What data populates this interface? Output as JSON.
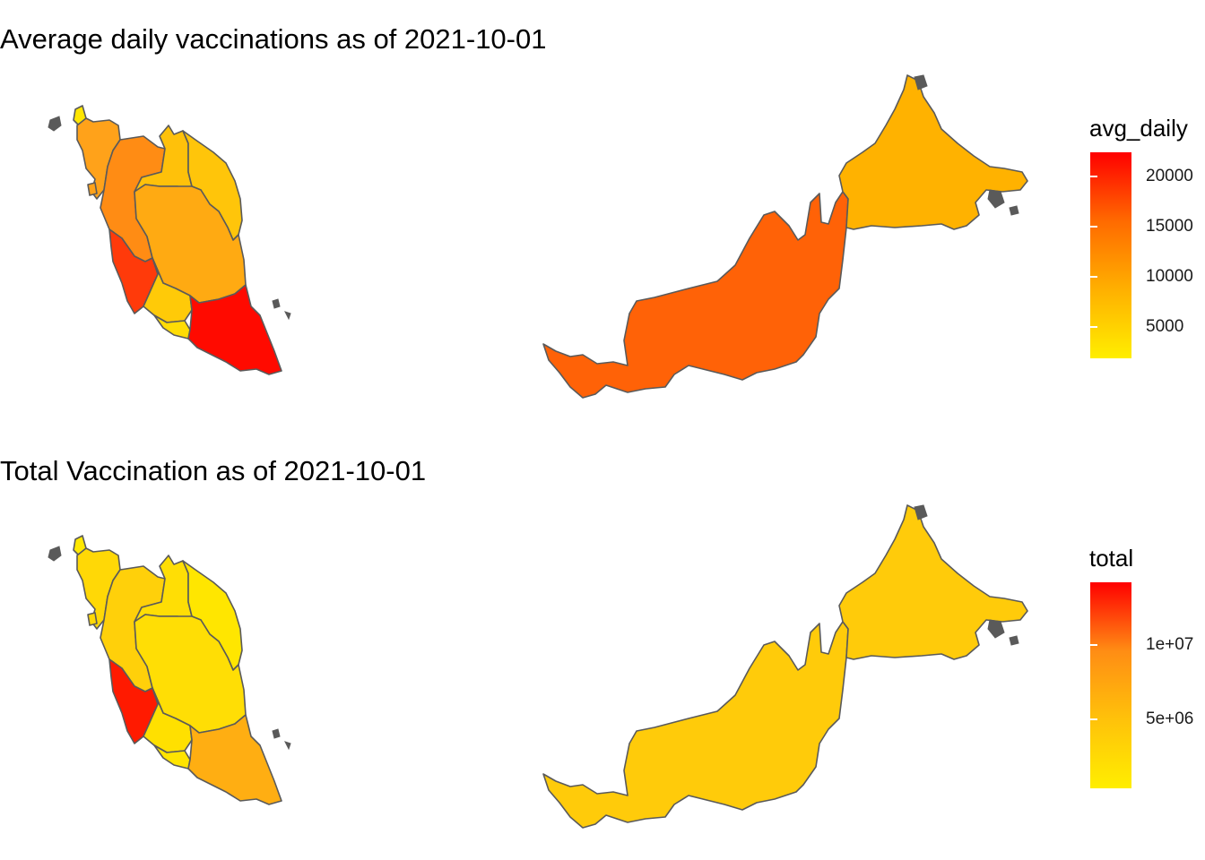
{
  "panels": [
    {
      "title": "Average daily vaccinations as of 2021-10-01",
      "legend": {
        "title": "avg_daily",
        "gradient": [
          "#FFEE00",
          "#FFB000",
          "#FF6A00",
          "#FF0000"
        ],
        "ticks": [
          {
            "label": "20000",
            "value": 20000
          },
          {
            "label": "15000",
            "value": 15000
          },
          {
            "label": "10000",
            "value": 10000
          },
          {
            "label": "5000",
            "value": 5000
          }
        ]
      },
      "regions": {
        "perlis": "#FFE600",
        "kedah": "#FFA21A",
        "penang": "#FFA21A",
        "perak": "#FF8C14",
        "kelantan": "#FFC10A",
        "terengganu": "#FFC50A",
        "pahang": "#FFAA12",
        "selangor": "#FF3A0A",
        "negeri_sembilan": "#FFCA08",
        "melaka": "#FFDC05",
        "johor": "#FF0A00",
        "sarawak": "#FF6207",
        "sabah": "#FFB200"
      }
    },
    {
      "title": "Total Vaccination as of 2021-10-01",
      "legend": {
        "title": "total",
        "gradient": [
          "#FFEE00",
          "#FFC20A",
          "#FF8D14",
          "#FF0000"
        ],
        "ticks": [
          {
            "label": "1e+07",
            "value": 10000000
          },
          {
            "label": "5e+06",
            "value": 5000000
          }
        ]
      },
      "regions": {
        "perlis": "#FFE800",
        "kedah": "#FFD806",
        "penang": "#FFD806",
        "perak": "#FFD00A",
        "kelantan": "#FFDE05",
        "terengganu": "#FFE600",
        "pahang": "#FFDE05",
        "selangor": "#FF1A00",
        "negeri_sembilan": "#FFE000",
        "melaka": "#FFE400",
        "johor": "#FFAE12",
        "sarawak": "#FFCB0A",
        "sabah": "#FFCB0A"
      }
    }
  ]
}
